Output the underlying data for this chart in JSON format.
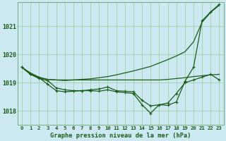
{
  "title": "Graphe pression niveau de la mer (hPa)",
  "bg_color": "#cce8f0",
  "grid_color": "#99cc99",
  "line_color": "#1a5c1a",
  "x_labels": [
    "0",
    "1",
    "2",
    "3",
    "4",
    "5",
    "6",
    "7",
    "8",
    "9",
    "10",
    "11",
    "12",
    "13",
    "14",
    "15",
    "16",
    "17",
    "18",
    "19",
    "20",
    "21",
    "22",
    "23"
  ],
  "ylim": [
    1017.5,
    1021.85
  ],
  "yticks": [
    1018,
    1019,
    1020,
    1021
  ],
  "series_flat": [
    1019.55,
    1019.32,
    1019.18,
    1019.12,
    1019.1,
    1019.1,
    1019.1,
    1019.1,
    1019.1,
    1019.1,
    1019.1,
    1019.1,
    1019.1,
    1019.1,
    1019.1,
    1019.1,
    1019.1,
    1019.12,
    1019.15,
    1019.18,
    1019.22,
    1019.25,
    1019.28,
    1019.3
  ],
  "series_rising": [
    1019.55,
    1019.35,
    1019.2,
    1019.12,
    1019.1,
    1019.08,
    1019.1,
    1019.12,
    1019.14,
    1019.18,
    1019.22,
    1019.28,
    1019.35,
    1019.42,
    1019.5,
    1019.58,
    1019.7,
    1019.82,
    1019.95,
    1020.1,
    1020.45,
    1021.15,
    1021.5,
    1021.75
  ],
  "series_wavy1": [
    1019.55,
    1019.3,
    1019.18,
    1018.95,
    1018.72,
    1018.68,
    1018.7,
    1018.72,
    1018.72,
    1018.7,
    1018.75,
    1018.68,
    1018.65,
    1018.62,
    1018.22,
    1017.92,
    1018.22,
    1018.2,
    1018.32,
    1019.05,
    1019.55,
    1021.2,
    1021.52,
    1021.78
  ],
  "series_wavy2": [
    1019.55,
    1019.3,
    1019.15,
    1019.08,
    1018.82,
    1018.75,
    1018.72,
    1018.72,
    1018.75,
    1018.78,
    1018.85,
    1018.72,
    1018.7,
    1018.68,
    1018.38,
    1018.18,
    1018.22,
    1018.28,
    1018.62,
    1019.0,
    1019.1,
    1019.2,
    1019.3,
    1019.1
  ]
}
